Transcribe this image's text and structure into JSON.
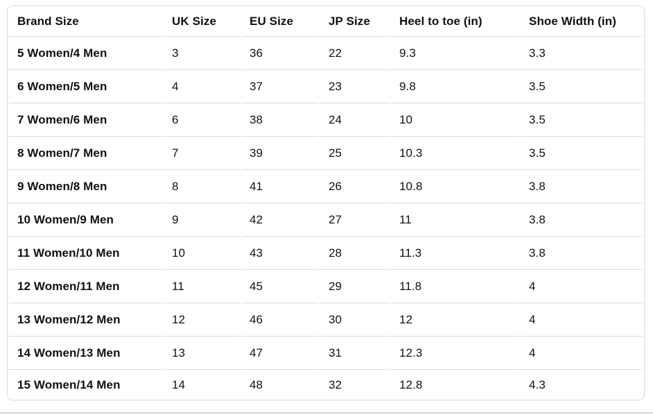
{
  "table": {
    "columns": [
      {
        "key": "brand-size",
        "label": "Brand Size"
      },
      {
        "key": "uk-size",
        "label": "UK Size"
      },
      {
        "key": "eu-size",
        "label": "EU Size"
      },
      {
        "key": "jp-size",
        "label": "JP Size"
      },
      {
        "key": "heel-to-toe",
        "label": "Heel to toe (in)"
      },
      {
        "key": "shoe-width",
        "label": "Shoe Width (in)"
      }
    ],
    "rows": [
      [
        "5 Women/4 Men",
        "3",
        "36",
        "22",
        "9.3",
        "3.3"
      ],
      [
        "6 Women/5 Men",
        "4",
        "37",
        "23",
        "9.8",
        "3.5"
      ],
      [
        "7 Women/6 Men",
        "6",
        "38",
        "24",
        "10",
        "3.5"
      ],
      [
        "8 Women/7 Men",
        "7",
        "39",
        "25",
        "10.3",
        "3.5"
      ],
      [
        "9 Women/8 Men",
        "8",
        "41",
        "26",
        "10.8",
        "3.8"
      ],
      [
        "10 Women/9 Men",
        "9",
        "42",
        "27",
        "11",
        "3.8"
      ],
      [
        "11 Women/10 Men",
        "10",
        "43",
        "28",
        "11.3",
        "3.8"
      ],
      [
        "12 Women/11 Men",
        "11",
        "45",
        "29",
        "11.8",
        "4"
      ],
      [
        "13 Women/12 Men",
        "12",
        "46",
        "30",
        "12",
        "4"
      ],
      [
        "14 Women/13 Men",
        "13",
        "47",
        "31",
        "12.3",
        "4"
      ],
      [
        "15 Women/14 Men",
        "14",
        "48",
        "32",
        "12.8",
        "4.3"
      ]
    ]
  },
  "colors": {
    "text": "#0f1111",
    "table_border": "#d5d9d9",
    "row_divider": "#d9dadb",
    "page_divider": "#d0d4d6",
    "background": "#ffffff"
  }
}
